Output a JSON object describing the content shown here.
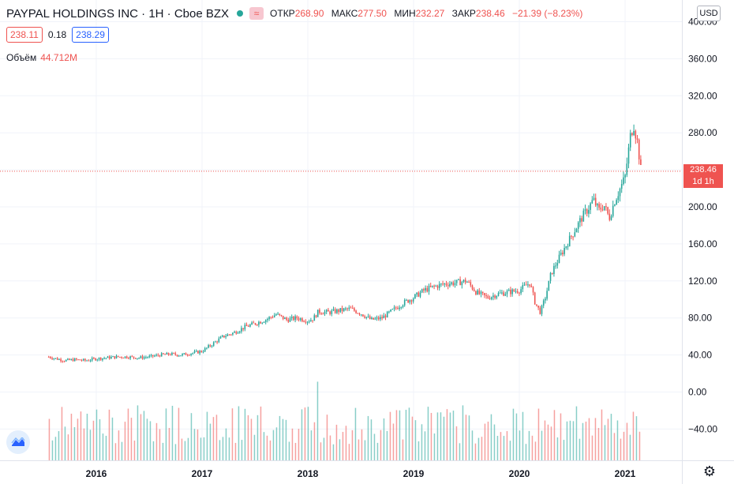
{
  "header": {
    "symbol": "PAYPAL HOLDINGS INC · 1H · Cboe BZX",
    "open_label": "ОТКР",
    "open": "268.90",
    "high_label": "МАКС",
    "high": "277.50",
    "low_label": "МИН",
    "low": "232.27",
    "close_label": "ЗАКР",
    "close": "238.46",
    "change": "−21.39 (−8.23%)",
    "wave_glyph": "≈",
    "market_status_color": "#26a69a"
  },
  "quote": {
    "bid": "238.11",
    "spread": "0.18",
    "ask": "238.29"
  },
  "volume": {
    "label": "Объём",
    "value": "44.712M"
  },
  "currency": "USD",
  "last_price_label": {
    "price": "238.46",
    "countdown": "1d 1h"
  },
  "gear_glyph": "⚙",
  "colors": {
    "up": "#26a69a",
    "down": "#ef5350",
    "grid": "#f0f3fa"
  },
  "chart_data": {
    "type": "candlestick",
    "x_ticks": [
      "2016",
      "2017",
      "2018",
      "2019",
      "2020",
      "2021"
    ],
    "y_ticks": [
      "400.00",
      "360.00",
      "320.00",
      "280.00",
      "240.00",
      "200.00",
      "160.00",
      "120.00",
      "80.00",
      "40.00",
      "0.00",
      "−40.00"
    ],
    "ylim": [
      -40,
      400
    ],
    "last_price": 238.46,
    "price_series": {
      "x": [
        2015.55,
        2015.62,
        2015.7,
        2015.8,
        2015.9,
        2016.0,
        2016.1,
        2016.2,
        2016.3,
        2016.4,
        2016.5,
        2016.6,
        2016.7,
        2016.8,
        2016.9,
        2017.0,
        2017.1,
        2017.2,
        2017.3,
        2017.4,
        2017.5,
        2017.6,
        2017.7,
        2017.8,
        2017.9,
        2018.0,
        2018.05,
        2018.1,
        2018.2,
        2018.3,
        2018.4,
        2018.5,
        2018.6,
        2018.7,
        2018.8,
        2018.9,
        2019.0,
        2019.1,
        2019.2,
        2019.3,
        2019.4,
        2019.5,
        2019.6,
        2019.7,
        2019.75,
        2019.8,
        2019.9,
        2020.0,
        2020.1,
        2020.15,
        2020.2,
        2020.25,
        2020.3,
        2020.4,
        2020.5,
        2020.6,
        2020.65,
        2020.7,
        2020.75,
        2020.8,
        2020.85,
        2020.9,
        2021.0,
        2021.05,
        2021.08,
        2021.12,
        2021.15
      ],
      "y": [
        38,
        36,
        34,
        35,
        34,
        36,
        37,
        38,
        38,
        37,
        38,
        40,
        41,
        40,
        42,
        44,
        52,
        60,
        64,
        70,
        74,
        78,
        84,
        78,
        80,
        77,
        79,
        87,
        86,
        88,
        90,
        85,
        78,
        80,
        88,
        96,
        102,
        110,
        114,
        117,
        118,
        120,
        107,
        102,
        104,
        106,
        108,
        110,
        118,
        96,
        86,
        104,
        128,
        150,
        170,
        190,
        198,
        208,
        196,
        202,
        188,
        206,
        232,
        276,
        290,
        268,
        238.46
      ]
    },
    "volume_series": {
      "min": -70,
      "max": 0
    }
  }
}
